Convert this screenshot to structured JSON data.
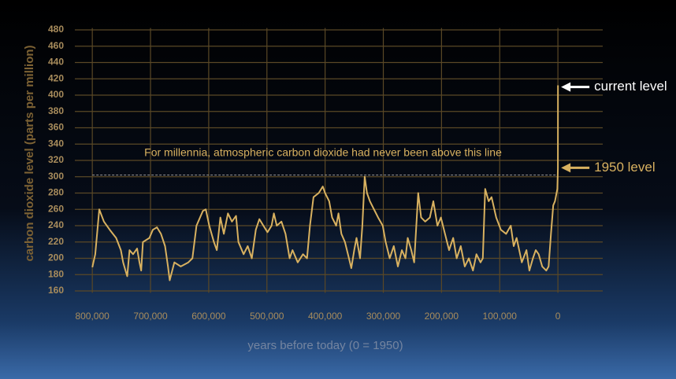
{
  "chart_data": {
    "type": "line",
    "ylabel": "carbon dioxide level (parts per million)",
    "xlabel": "years before today (0 = 1950)",
    "color": "#d8b160",
    "x": [
      800000,
      795000,
      788000,
      780000,
      770000,
      759000,
      751000,
      747000,
      743000,
      740000,
      736000,
      730000,
      723000,
      719000,
      716000,
      713000,
      702000,
      696000,
      689000,
      682000,
      675000,
      670000,
      667000,
      659000,
      648000,
      635000,
      628000,
      621000,
      610000,
      605000,
      599000,
      591000,
      586000,
      580000,
      574000,
      567000,
      560000,
      553000,
      549000,
      540000,
      533000,
      526000,
      519000,
      513000,
      506000,
      499000,
      492000,
      488000,
      483000,
      475000,
      468000,
      461000,
      456000,
      447000,
      438000,
      431000,
      426000,
      420000,
      411000,
      404000,
      400000,
      393000,
      388000,
      381000,
      377000,
      372000,
      366000,
      359000,
      355000,
      350000,
      346000,
      340000,
      336000,
      332000,
      328000,
      323000,
      316000,
      309000,
      301000,
      296000,
      289000,
      282000,
      275000,
      268000,
      262000,
      258000,
      252000,
      247000,
      240000,
      235000,
      228000,
      220000,
      214000,
      207000,
      201000,
      194000,
      187000,
      180000,
      174000,
      167000,
      160000,
      153000,
      146000,
      140000,
      133000,
      129000,
      125000,
      119000,
      114000,
      106000,
      98000,
      89000,
      81000,
      76000,
      71000,
      62000,
      54000,
      49000,
      43000,
      38000,
      33000,
      27000,
      20000,
      16000,
      12000,
      8000,
      5000,
      1000,
      0,
      -70
    ],
    "values": [
      189,
      205,
      260,
      245,
      235,
      225,
      210,
      195,
      185,
      178,
      210,
      205,
      212,
      195,
      185,
      220,
      225,
      235,
      238,
      230,
      215,
      190,
      173,
      195,
      190,
      195,
      200,
      240,
      258,
      260,
      240,
      220,
      210,
      250,
      230,
      255,
      245,
      252,
      220,
      205,
      215,
      200,
      235,
      248,
      240,
      232,
      240,
      255,
      240,
      245,
      230,
      200,
      210,
      195,
      205,
      200,
      240,
      275,
      280,
      288,
      280,
      270,
      250,
      240,
      255,
      230,
      220,
      200,
      188,
      210,
      225,
      200,
      240,
      300,
      280,
      270,
      260,
      250,
      240,
      220,
      200,
      215,
      190,
      210,
      200,
      225,
      210,
      195,
      280,
      250,
      245,
      250,
      270,
      240,
      250,
      230,
      210,
      225,
      200,
      215,
      190,
      200,
      185,
      205,
      195,
      200,
      285,
      270,
      275,
      250,
      235,
      230,
      240,
      215,
      225,
      195,
      210,
      185,
      200,
      210,
      205,
      190,
      185,
      190,
      230,
      265,
      270,
      285,
      310,
      412
    ],
    "xlim": [
      830000,
      -77000
    ],
    "ylim": [
      150,
      490
    ],
    "xticks": [
      {
        "value": 800000,
        "label": "800,000"
      },
      {
        "value": 700000,
        "label": "700,000"
      },
      {
        "value": 600000,
        "label": "600,000"
      },
      {
        "value": 500000,
        "label": "500,000"
      },
      {
        "value": 400000,
        "label": "400,000"
      },
      {
        "value": 300000,
        "label": "300,000"
      },
      {
        "value": 200000,
        "label": "200,000"
      },
      {
        "value": 100000,
        "label": "100,000"
      },
      0
    ],
    "yticks": [
      160,
      180,
      200,
      220,
      240,
      260,
      280,
      300,
      320,
      340,
      360,
      380,
      400,
      420,
      440,
      460,
      480
    ],
    "grid": true,
    "annotations": [
      {
        "text": "For millennia, atmospheric carbon dioxide had never been above this line",
        "value": 302
      },
      {
        "text": "current level",
        "value": 410
      },
      {
        "text": "1950 level",
        "value": 311
      }
    ]
  }
}
